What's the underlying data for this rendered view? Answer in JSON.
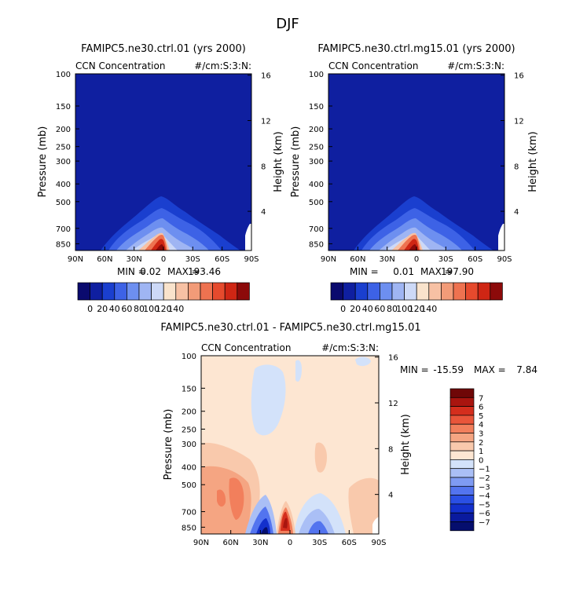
{
  "figure_title": "DJF",
  "colors": {
    "seq": [
      "#0a0a6e",
      "#0f1fa0",
      "#1a3fcf",
      "#3d62e6",
      "#6d8ff0",
      "#9fb5f3",
      "#cdd9f7",
      "#f9e3cc",
      "#f7c1a4",
      "#f29b78",
      "#ee7250",
      "#e64a2d",
      "#cf2614",
      "#8c0a0a"
    ],
    "diff": [
      "#050e6e",
      "#0a1a9e",
      "#1330cc",
      "#2a4fe4",
      "#5374ef",
      "#7f9bf3",
      "#aabff6",
      "#d3e2fa",
      "#fde6d2",
      "#f9c9ac",
      "#f5a582",
      "#f27f5c",
      "#e9553a",
      "#d42e1d",
      "#a9150f",
      "#6f0707"
    ]
  },
  "panels": [
    {
      "title": "FAMIPC5.ne30.ctrl.01 (yrs 2000)",
      "left_label": "CCN Concentration",
      "right_label": "#/cm:S:3:N:",
      "min_label": "MIN = ",
      "min_value": "0.02",
      "max_label": "MAX = ",
      "max_value": "193.46"
    },
    {
      "title": "FAMIPC5.ne30.ctrl.mg15.01 (yrs 2000)",
      "left_label": "CCN Concentration",
      "right_label": "#/cm:S:3:N:",
      "min_label": "MIN = ",
      "min_value": "0.01",
      "max_label": "MAX = ",
      "max_value": "197.90"
    },
    {
      "title": "FAMIPC5.ne30.ctrl.01 - FAMIPC5.ne30.ctrl.mg15.01",
      "left_label": "CCN Concentration",
      "right_label": "#/cm:S:3:N:",
      "min_label": "MIN = ",
      "min_value": "-15.59",
      "max_label": "MAX = ",
      "max_value": "7.84"
    }
  ],
  "chart_data": [
    {
      "type": "heatmap",
      "title": "FAMIPC5.ne30.ctrl.01 (yrs 2000)",
      "field": "CCN Concentration",
      "units": "#/cm:S:3:N:",
      "xlabel": "",
      "ylabel": "Pressure (mb)",
      "y2label": "Height (km)",
      "x_ticks": [
        "90N",
        "60N",
        "30N",
        "0",
        "30S",
        "60S",
        "90S"
      ],
      "y_ticks": [
        "100",
        "150",
        "200",
        "250",
        "300",
        "400",
        "500",
        "700",
        "850"
      ],
      "y_range_mb": [
        100,
        925
      ],
      "y2_ticks": [
        "4",
        "8",
        "12",
        "16"
      ],
      "min": 0.02,
      "max": 193.46,
      "colorbar_ticks": [
        "0",
        "20",
        "40",
        "60",
        "80",
        "100",
        "120",
        "140"
      ],
      "peak": {
        "lat": "~10N",
        "pressure_mb": 850
      }
    },
    {
      "type": "heatmap",
      "title": "FAMIPC5.ne30.ctrl.mg15.01 (yrs 2000)",
      "field": "CCN Concentration",
      "units": "#/cm:S:3:N:",
      "xlabel": "",
      "ylabel": "Pressure (mb)",
      "y2label": "Height (km)",
      "x_ticks": [
        "90N",
        "60N",
        "30N",
        "0",
        "30S",
        "60S",
        "90S"
      ],
      "y_ticks": [
        "100",
        "150",
        "200",
        "250",
        "300",
        "400",
        "500",
        "700",
        "850"
      ],
      "y_range_mb": [
        100,
        925
      ],
      "y2_ticks": [
        "4",
        "8",
        "12",
        "16"
      ],
      "min": 0.01,
      "max": 197.9,
      "colorbar_ticks": [
        "0",
        "20",
        "40",
        "60",
        "80",
        "100",
        "120",
        "140"
      ],
      "peak": {
        "lat": "~10N",
        "pressure_mb": 850
      }
    },
    {
      "type": "heatmap",
      "title": "FAMIPC5.ne30.ctrl.01 - FAMIPC5.ne30.ctrl.mg15.01",
      "field": "CCN Concentration",
      "units": "#/cm:S:3:N:",
      "xlabel": "",
      "ylabel": "Pressure (mb)",
      "y2label": "Height (km)",
      "x_ticks": [
        "90N",
        "60N",
        "30N",
        "0",
        "30S",
        "60S",
        "90S"
      ],
      "y_ticks": [
        "100",
        "150",
        "200",
        "250",
        "300",
        "400",
        "500",
        "700",
        "850"
      ],
      "y_range_mb": [
        100,
        925
      ],
      "y2_ticks": [
        "4",
        "8",
        "12",
        "16"
      ],
      "min": -15.59,
      "max": 7.84,
      "colorbar_ticks": [
        "7",
        "6",
        "5",
        "4",
        "3",
        "2",
        "1",
        "0",
        "-1",
        "-2",
        "-3",
        "-4",
        "-5",
        "-6",
        "-7"
      ],
      "peak": {
        "lat": "~10N",
        "pressure_mb": 800
      }
    }
  ]
}
